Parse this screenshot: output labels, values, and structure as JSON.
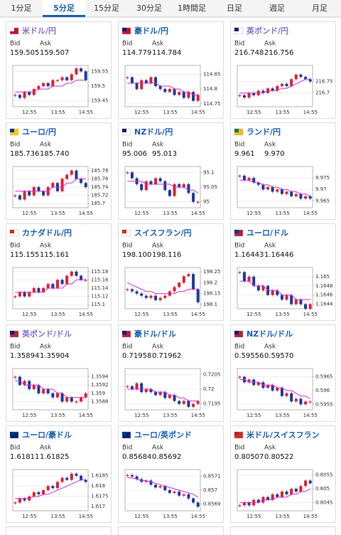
{
  "tabs": [
    "1分足",
    "5分足",
    "15分足",
    "30分足",
    "1時間足",
    "日足",
    "週足",
    "月足"
  ],
  "active_tab": 1,
  "bid_label": "Bid",
  "ask_label": "Ask",
  "chart_data": [
    {
      "type": "candlestick",
      "title": "米ドル/円",
      "color": "#8a6fd1",
      "bid": "159.505",
      "ask": "159.507",
      "xticks": [
        "12:55",
        "13:55",
        "14:55"
      ],
      "ylim": [
        159.43,
        159.57
      ],
      "yticks": [
        159.45,
        159.5,
        159.55
      ],
      "values": [
        159.47,
        159.46,
        159.48,
        159.47,
        159.49,
        159.5,
        159.51,
        159.5,
        159.52,
        159.52,
        159.53,
        159.52,
        159.54,
        159.56,
        159.55,
        159.52
      ],
      "ma": [
        159.48,
        159.48,
        159.48,
        159.48,
        159.48,
        159.49,
        159.49,
        159.49,
        159.5,
        159.5,
        159.5,
        159.51,
        159.51,
        159.52,
        159.52,
        159.52
      ]
    },
    {
      "type": "candlestick",
      "title": "豪ドル/円",
      "color": "#1a5fb4",
      "bid": "114.779",
      "ask": "114.784",
      "xticks": [
        "12:55",
        "13:55",
        "14:55"
      ],
      "ylim": [
        114.74,
        114.88
      ],
      "yticks": [
        114.75,
        114.8,
        114.85
      ],
      "values": [
        114.84,
        114.82,
        114.8,
        114.83,
        114.82,
        114.84,
        114.81,
        114.8,
        114.79,
        114.8,
        114.78,
        114.79,
        114.77,
        114.79,
        114.76,
        114.78
      ],
      "ma": [
        114.82,
        114.82,
        114.82,
        114.82,
        114.82,
        114.82,
        114.82,
        114.81,
        114.81,
        114.81,
        114.8,
        114.8,
        114.79,
        114.79,
        114.78,
        114.78
      ]
    },
    {
      "type": "candlestick",
      "title": "英ポンド/円",
      "color": "#8a6fd1",
      "bid": "216.748",
      "ask": "216.756",
      "xticks": [
        "12:55",
        "13:55",
        "14:55"
      ],
      "ylim": [
        216.64,
        216.82
      ],
      "yticks": [
        216.7,
        216.75
      ],
      "values": [
        216.69,
        216.68,
        216.7,
        216.69,
        216.71,
        216.7,
        216.72,
        216.71,
        216.73,
        216.74,
        216.73,
        216.76,
        216.78,
        216.77,
        216.76,
        216.75
      ],
      "ma": [
        216.7,
        216.7,
        216.7,
        216.7,
        216.7,
        216.7,
        216.71,
        216.71,
        216.71,
        216.72,
        216.72,
        216.73,
        216.74,
        216.75,
        216.76,
        216.76
      ]
    },
    {
      "type": "candlestick",
      "title": "ユーロ/円",
      "color": "#1a5fb4",
      "bid": "185.736",
      "ask": "185.740",
      "xticks": [
        "12:55",
        "13:55",
        "14:55"
      ],
      "ylim": [
        185.69,
        185.79
      ],
      "yticks": [
        185.7,
        185.72,
        185.74,
        185.76,
        185.78
      ],
      "values": [
        185.72,
        185.71,
        185.73,
        185.72,
        185.74,
        185.73,
        185.72,
        185.74,
        185.75,
        185.73,
        185.76,
        185.77,
        185.78,
        185.76,
        185.75,
        185.74
      ],
      "ma": [
        185.73,
        185.73,
        185.73,
        185.73,
        185.73,
        185.73,
        185.73,
        185.73,
        185.74,
        185.74,
        185.74,
        185.75,
        185.75,
        185.76,
        185.76,
        185.76
      ]
    },
    {
      "type": "candlestick",
      "title": "NZドル/円",
      "color": "#1a5fb4",
      "bid": "95.006",
      "ask": "95.013",
      "xticks": [
        "12:55",
        "13:55",
        "14:55"
      ],
      "ylim": [
        94.98,
        95.12
      ],
      "yticks": [
        95,
        95.05,
        95.1
      ],
      "values": [
        95.1,
        95.08,
        95.06,
        95.04,
        95.07,
        95.06,
        95.08,
        95.07,
        95.04,
        95.02,
        95.06,
        95.05,
        95.06,
        95.03,
        95.0,
        95.0
      ],
      "ma": [
        95.07,
        95.07,
        95.07,
        95.07,
        95.06,
        95.06,
        95.06,
        95.06,
        95.06,
        95.06,
        95.05,
        95.05,
        95.05,
        95.04,
        95.04,
        95.03
      ]
    },
    {
      "type": "candlestick",
      "title": "ランド/円",
      "color": "#1a5fb4",
      "bid": "9.961",
      "ask": "9.970",
      "xticks": [
        "12:55",
        "13:55",
        "14:55"
      ],
      "ylim": [
        9.962,
        9.98
      ],
      "yticks": [
        9.965,
        9.97,
        9.975
      ],
      "values": [
        9.976,
        9.974,
        9.975,
        9.973,
        9.972,
        9.97,
        9.971,
        9.969,
        9.97,
        9.968,
        9.969,
        9.967,
        9.968,
        9.966,
        9.967,
        9.966
      ],
      "ma": [
        9.974,
        9.974,
        9.974,
        9.973,
        9.973,
        9.972,
        9.972,
        9.971,
        9.971,
        9.97,
        9.97,
        9.969,
        9.969,
        9.968,
        9.968,
        9.967
      ]
    },
    {
      "type": "candlestick",
      "title": "カナダドル/円",
      "color": "#1a5fb4",
      "bid": "115.155",
      "ask": "115.161",
      "xticks": [
        "12:55",
        "13:55",
        "14:55"
      ],
      "ylim": [
        115.09,
        115.19
      ],
      "yticks": [
        115.1,
        115.12,
        115.14,
        115.16,
        115.18
      ],
      "values": [
        115.12,
        115.13,
        115.12,
        115.13,
        115.14,
        115.13,
        115.14,
        115.15,
        115.14,
        115.16,
        115.15,
        115.17,
        115.18,
        115.17,
        115.16,
        115.16
      ],
      "ma": [
        115.13,
        115.13,
        115.13,
        115.13,
        115.13,
        115.13,
        115.13,
        115.14,
        115.14,
        115.14,
        115.14,
        115.15,
        115.15,
        115.16,
        115.16,
        115.16
      ]
    },
    {
      "type": "candlestick",
      "title": "スイスフラン/円",
      "color": "#1a5fb4",
      "bid": "198.100",
      "ask": "198.116",
      "xticks": [
        "12:55",
        "13:55",
        "14:55"
      ],
      "ylim": [
        198.08,
        198.27
      ],
      "yticks": [
        198.1,
        198.15,
        198.2,
        198.25
      ],
      "values": [
        198.17,
        198.16,
        198.15,
        198.14,
        198.13,
        198.14,
        198.12,
        198.13,
        198.14,
        198.16,
        198.18,
        198.2,
        198.23,
        198.24,
        198.17,
        198.11
      ],
      "ma": [
        198.2,
        198.19,
        198.18,
        198.17,
        198.16,
        198.16,
        198.15,
        198.15,
        198.15,
        198.15,
        198.15,
        198.16,
        198.16,
        198.17,
        198.17,
        198.17
      ]
    },
    {
      "type": "candlestick",
      "title": "ユーロ/ドル",
      "color": "#1a5fb4",
      "bid": "1.16443",
      "ask": "1.16446",
      "xticks": [
        "12:55",
        "13:55",
        "14:55"
      ],
      "ylim": [
        1.1643,
        1.1652
      ],
      "yticks": [
        1.1644,
        1.1646,
        1.1648,
        1.165
      ],
      "values": [
        1.1651,
        1.1649,
        1.165,
        1.1648,
        1.1647,
        1.1648,
        1.1646,
        1.1647,
        1.1646,
        1.1645,
        1.1646,
        1.1644,
        1.1645,
        1.1644,
        1.1643,
        1.1644
      ],
      "ma": [
        1.1649,
        1.1649,
        1.1649,
        1.1648,
        1.1648,
        1.1648,
        1.1647,
        1.1647,
        1.1647,
        1.1646,
        1.1646,
        1.1646,
        1.1645,
        1.1645,
        1.1645,
        1.1645
      ]
    },
    {
      "type": "candlestick",
      "title": "英ポンド/ドル",
      "color": "#8a6fd1",
      "bid": "1.35894",
      "ask": "1.35904",
      "xticks": [
        "12:55",
        "13:55",
        "14:55"
      ],
      "ylim": [
        1.3586,
        1.3596
      ],
      "yticks": [
        1.3588,
        1.359,
        1.3592,
        1.3594
      ],
      "values": [
        1.3594,
        1.3592,
        1.3593,
        1.3591,
        1.3592,
        1.359,
        1.3591,
        1.359,
        1.3589,
        1.359,
        1.3588,
        1.3589,
        1.3588,
        1.3588,
        1.3589,
        1.359
      ],
      "ma": [
        1.3593,
        1.3593,
        1.3592,
        1.3592,
        1.3592,
        1.3592,
        1.3591,
        1.3591,
        1.3591,
        1.359,
        1.359,
        1.3589,
        1.3589,
        1.3589,
        1.3589,
        1.3589
      ]
    },
    {
      "type": "candlestick",
      "title": "豪ドル/ドル",
      "color": "#1a5fb4",
      "bid": "0.71958",
      "ask": "0.71962",
      "xticks": [
        "12:55",
        "13:55",
        "14:55"
      ],
      "ylim": [
        0.7193,
        0.7207
      ],
      "yticks": [
        0.7195,
        0.72,
        0.7205
      ],
      "values": [
        0.7201,
        0.72,
        0.7202,
        0.7199,
        0.72,
        0.7199,
        0.7198,
        0.7199,
        0.7197,
        0.7198,
        0.7196,
        0.7195,
        0.7196,
        0.7194,
        0.7195,
        0.7196
      ],
      "ma": [
        0.72,
        0.72,
        0.72,
        0.72,
        0.72,
        0.72,
        0.7199,
        0.7199,
        0.7199,
        0.7198,
        0.7198,
        0.7197,
        0.7197,
        0.7196,
        0.7196,
        0.7196
      ]
    },
    {
      "type": "candlestick",
      "title": "NZドル/ドル",
      "color": "#1a5fb4",
      "bid": "0.59556",
      "ask": "0.59570",
      "xticks": [
        "12:55",
        "13:55",
        "14:55"
      ],
      "ylim": [
        0.5953,
        0.5968
      ],
      "yticks": [
        0.5955,
        0.596,
        0.5965
      ],
      "values": [
        0.5965,
        0.5963,
        0.5964,
        0.5962,
        0.5963,
        0.5961,
        0.5962,
        0.596,
        0.5961,
        0.5958,
        0.5959,
        0.5956,
        0.5957,
        0.5955,
        0.5956,
        0.5956
      ],
      "ma": [
        0.5964,
        0.5964,
        0.5963,
        0.5963,
        0.5963,
        0.5962,
        0.5962,
        0.5962,
        0.5961,
        0.5961,
        0.596,
        0.596,
        0.5959,
        0.5958,
        0.5958,
        0.5957
      ]
    },
    {
      "type": "candlestick",
      "title": "ユーロ/豪ドル",
      "color": "#1a5fb4",
      "bid": "1.61811",
      "ask": "1.61825",
      "xticks": [
        "12:55",
        "13:55",
        "14:55"
      ],
      "ylim": [
        1.6168,
        1.6188
      ],
      "yticks": [
        1.617,
        1.6175,
        1.618,
        1.6185
      ],
      "values": [
        1.6172,
        1.6174,
        1.6173,
        1.6175,
        1.6177,
        1.6176,
        1.6178,
        1.618,
        1.6179,
        1.6182,
        1.6184,
        1.6183,
        1.6186,
        1.6185,
        1.6183,
        1.6182
      ],
      "ma": [
        1.6174,
        1.6174,
        1.6174,
        1.6174,
        1.6175,
        1.6175,
        1.6176,
        1.6176,
        1.6177,
        1.6178,
        1.6179,
        1.618,
        1.6181,
        1.6182,
        1.6183,
        1.6183
      ]
    },
    {
      "type": "candlestick",
      "title": "ユーロ/英ポンド",
      "color": "#1a5fb4",
      "bid": "0.85684",
      "ask": "0.85692",
      "xticks": [
        "12:55",
        "13:55",
        "14:55"
      ],
      "ylim": [
        0.85685,
        0.85715
      ],
      "yticks": [
        0.8569,
        0.857,
        0.8571
      ],
      "values": [
        0.85711,
        0.8571,
        0.85708,
        0.85706,
        0.85707,
        0.85704,
        0.85702,
        0.85703,
        0.857,
        0.85698,
        0.85699,
        0.85696,
        0.85697,
        0.85694,
        0.85691,
        0.85688
      ],
      "ma": [
        0.85709,
        0.85709,
        0.85708,
        0.85707,
        0.85707,
        0.85706,
        0.85705,
        0.85704,
        0.85703,
        0.85702,
        0.85701,
        0.857,
        0.85699,
        0.85698,
        0.85697,
        0.85695
      ]
    },
    {
      "type": "candlestick",
      "title": "米ドル/スイスフラン",
      "color": "#1a5fb4",
      "bid": "0.80507",
      "ask": "0.80522",
      "xticks": [
        "12:55",
        "13:55",
        "14:55"
      ],
      "ylim": [
        0.8042,
        0.8057
      ],
      "yticks": [
        0.8045,
        0.805,
        0.8055
      ],
      "values": [
        0.8044,
        0.8045,
        0.8044,
        0.8046,
        0.8045,
        0.8047,
        0.8046,
        0.8048,
        0.8047,
        0.8049,
        0.8048,
        0.805,
        0.8049,
        0.8051,
        0.8053,
        0.8052
      ],
      "ma": [
        0.8045,
        0.8045,
        0.8045,
        0.8045,
        0.8045,
        0.8046,
        0.8046,
        0.8046,
        0.8047,
        0.8047,
        0.8047,
        0.8048,
        0.8048,
        0.8049,
        0.8049,
        0.805
      ]
    }
  ]
}
